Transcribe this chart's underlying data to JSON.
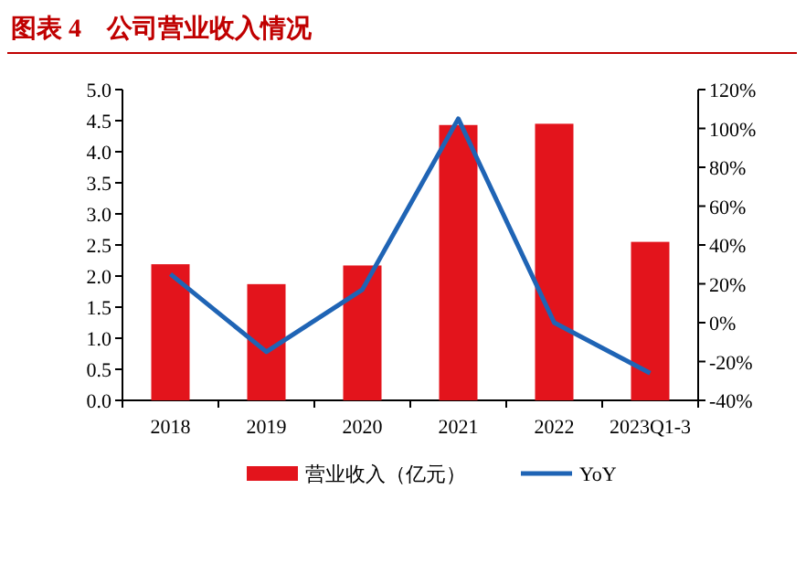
{
  "chart_data": {
    "type": "bar",
    "title": "图表 4　公司营业收入情况",
    "categories": [
      "2018",
      "2019",
      "2020",
      "2021",
      "2022",
      "2023Q1-3"
    ],
    "series": [
      {
        "name": "营业收入（亿元）",
        "color": "#e3141c",
        "values": [
          2.19,
          1.87,
          2.17,
          4.43,
          4.45,
          2.55
        ]
      },
      {
        "name": "YoY",
        "type": "line",
        "axis": "y2",
        "color": "#1f64b5",
        "values": [
          25,
          -15,
          17,
          105,
          0,
          -26
        ]
      }
    ],
    "ylim": [
      0,
      5
    ],
    "yticks": [
      {
        "value": 0,
        "label": "0.0"
      },
      {
        "value": 0.5,
        "label": "0.5"
      },
      {
        "value": 1,
        "label": "1.0"
      },
      {
        "value": 1.5,
        "label": "1.5"
      },
      {
        "value": 2,
        "label": "2.0"
      },
      {
        "value": 2.5,
        "label": "2.5"
      },
      {
        "value": 3,
        "label": "3.0"
      },
      {
        "value": 3.5,
        "label": "3.5"
      },
      {
        "value": 4,
        "label": "4.0"
      },
      {
        "value": 4.5,
        "label": "4.5"
      },
      {
        "value": 5,
        "label": "5.0"
      }
    ],
    "y2lim": [
      -40,
      120
    ],
    "y2ticks": [
      {
        "value": -40,
        "label": "-40%"
      },
      {
        "value": -20,
        "label": "-20%"
      },
      {
        "value": 0,
        "label": "0%"
      },
      {
        "value": 20,
        "label": "20%"
      },
      {
        "value": 40,
        "label": "40%"
      },
      {
        "value": 60,
        "label": "60%"
      },
      {
        "value": 80,
        "label": "80%"
      },
      {
        "value": 100,
        "label": "100%"
      },
      {
        "value": 120,
        "label": "120%"
      }
    ],
    "legend": "bottom"
  }
}
